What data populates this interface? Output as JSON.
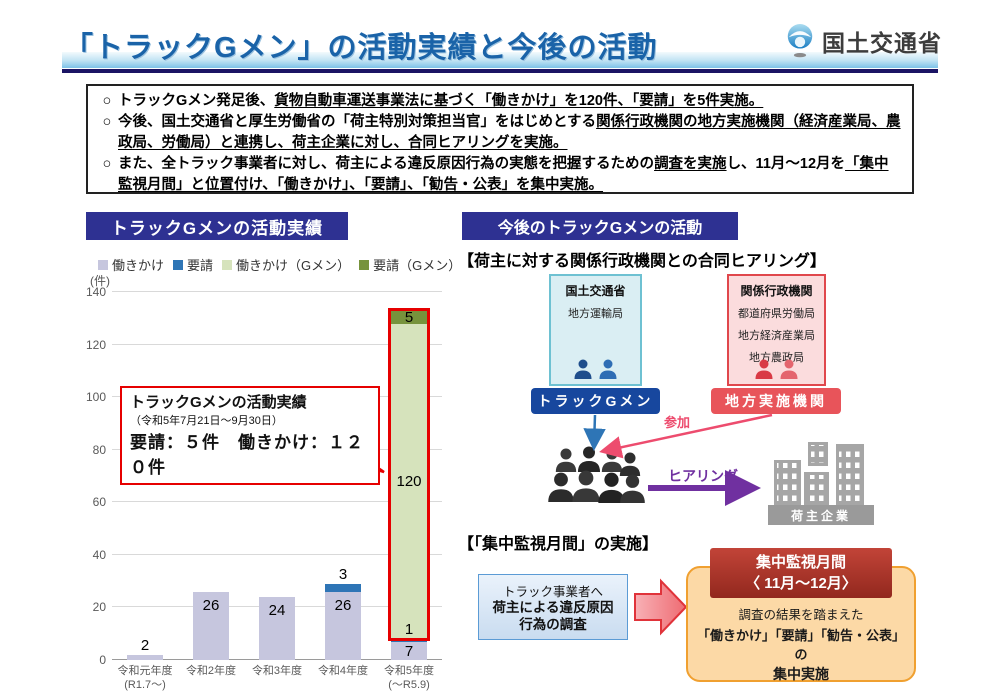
{
  "page": {
    "title": "「トラックGメン」の活動実績と今後の活動",
    "ministry": "国土交通省"
  },
  "colors": {
    "header_blue": "#2e3192",
    "highlight_red": "#e60000",
    "gmen_pill_blue": "#17479e",
    "chiho_pill_red": "#e8545a",
    "sanka_pink": "#ed4c6e",
    "hearing_purple": "#7030a0",
    "building_gray": "#a6a6a6",
    "orange_box": "#fcd9a6",
    "dark_red_box": "#a83427"
  },
  "bullets": [
    {
      "segments": [
        {
          "t": "トラックGメン発足後、",
          "u": false
        },
        {
          "t": "貨物自動車運送事業法に基づく「働きかけ」を120件、「要請」を5件実施。",
          "u": true
        }
      ]
    },
    {
      "segments": [
        {
          "t": "今後、国土交通省と厚生労働省の「荷主特別対策担当官」をはじめとする",
          "u": false
        },
        {
          "t": "関係行政機関の地方実施機関（経済産業局、農政局、労働局）と連携し、荷主企業に対し、合同ヒアリングを実施。",
          "u": true
        }
      ]
    },
    {
      "segments": [
        {
          "t": "また、全トラック事業者に対し、荷主による違反原因行為の実態を把握するための",
          "u": false
        },
        {
          "t": "調査を実施",
          "u": true
        },
        {
          "t": "し、11月～12月を",
          "u": false
        },
        {
          "t": "「集中監視月間」と位置付け、「働きかけ」、「要請」、「勧告・公表」を集中実施。",
          "u": true
        }
      ]
    }
  ],
  "left": {
    "header": "トラックGメンの活動実績",
    "unit": "(件)",
    "callout": {
      "line1": "トラックGメンの活動実績",
      "line2": "（令和5年7月21日～9月30日）",
      "line3": "要請：５件　働きかけ：１２０件"
    }
  },
  "chart_data": {
    "type": "bar",
    "stacked": true,
    "title": "トラックGメンの活動実績",
    "ylabel": "件",
    "ylim": [
      0,
      140
    ],
    "ytick_step": 20,
    "grid": true,
    "legend_position": "top",
    "categories": [
      [
        "令和元年度",
        "(R1.7～)"
      ],
      [
        "令和2年度",
        ""
      ],
      [
        "令和3年度",
        ""
      ],
      [
        "令和4年度",
        ""
      ],
      [
        "令和5年度",
        "(～R5.9)"
      ]
    ],
    "series": [
      {
        "name": "働きかけ",
        "color": "#c6c6de",
        "values": [
          2,
          26,
          24,
          26,
          7
        ]
      },
      {
        "name": "要請",
        "color": "#2e75b6",
        "values": [
          0,
          0,
          0,
          3,
          1
        ]
      },
      {
        "name": "働きかけ（Gメン）",
        "color": "#d6e3bc",
        "values": [
          0,
          0,
          0,
          0,
          120
        ]
      },
      {
        "name": "要請（Gメン）",
        "color": "#77933c",
        "values": [
          0,
          0,
          0,
          0,
          5
        ]
      }
    ],
    "highlight": {
      "bar_index": 4,
      "from": 8,
      "to": 133,
      "color": "#e60000"
    }
  },
  "right": {
    "header": "今後のトラックGメンの活動",
    "subtitle1": "【荷主に対する関係行政機関との合同ヒアリング】",
    "mlit": {
      "title": "国土交通省",
      "line": "地方運輸局"
    },
    "kankei": {
      "title": "関係行政機関",
      "lines": [
        "都道府県労働局",
        "地方経済産業局",
        "地方農政局"
      ]
    },
    "pill_gmen": "トラックGメン",
    "pill_chiho": "地方実施機関",
    "sanka": "参加",
    "hearing": "ヒアリング",
    "shipper": "荷主企業",
    "subtitle2": "【「集中監視月間」の実施】",
    "survey_box": {
      "line1": "トラック事業者へ",
      "line2": "荷主による違反原因",
      "line3": "行為の調査"
    },
    "red_box": {
      "line1": "集中監視月間",
      "line2": "〈 11月～12月〉"
    },
    "orange_box": {
      "line1": "調査の結果を踏まえた",
      "line2": "「働きかけ」「要請」「勧告・公表」の",
      "line3": "集中実施"
    }
  }
}
